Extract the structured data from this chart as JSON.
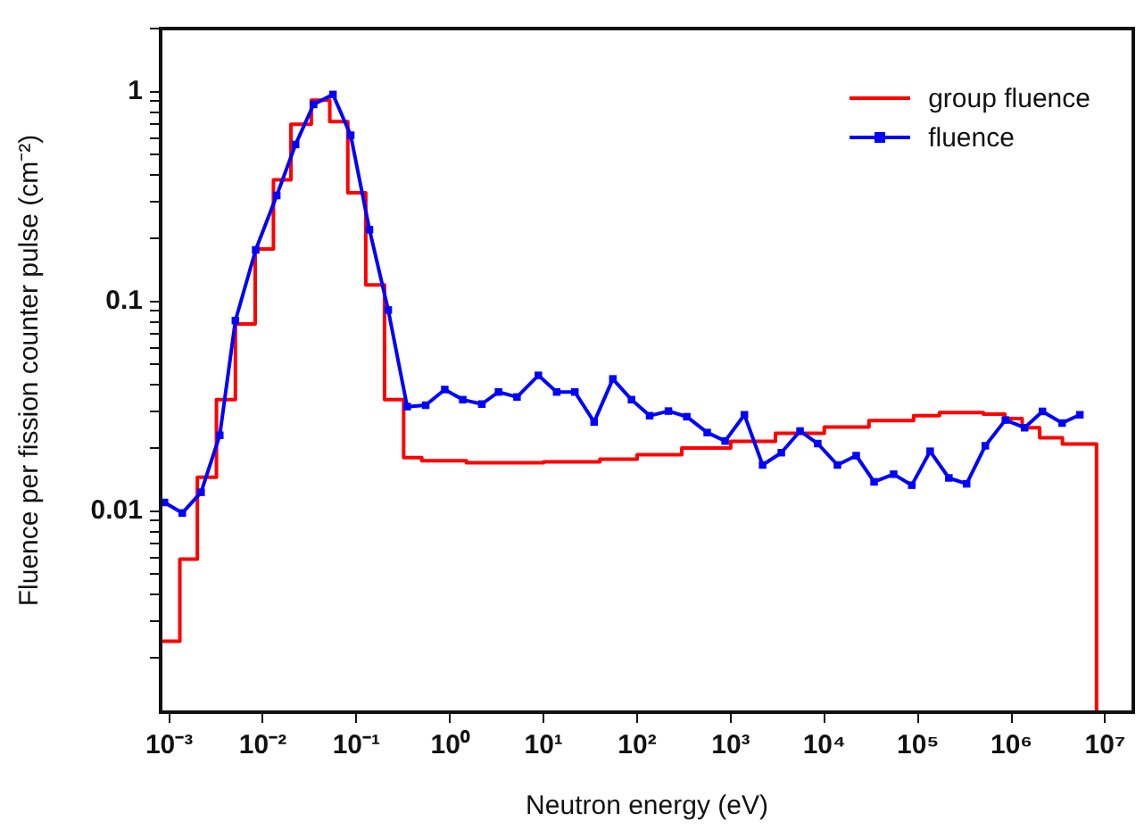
{
  "chart_data": {
    "type": "line",
    "xlabel": "Neutron energy (eV)",
    "ylabel": "Fluence per fission counter pulse (cm⁻²)",
    "log": "xy",
    "grid": false,
    "legend": "top right",
    "line_style": "solid",
    "xlim": [
      0.00081,
      20000000
    ],
    "ylim": [
      0.0011,
      2
    ],
    "xticks": [
      {
        "value": 0.001,
        "label": "10⁻³"
      },
      {
        "value": 0.01,
        "label": "10⁻²"
      },
      {
        "value": 0.1,
        "label": "10⁻¹"
      },
      {
        "value": 1,
        "label": "10⁰"
      },
      {
        "value": 10,
        "label": "10¹"
      },
      {
        "value": 100,
        "label": "10²"
      },
      {
        "value": 1000,
        "label": "10³"
      },
      {
        "value": 10000,
        "label": "10⁴"
      },
      {
        "value": 100000,
        "label": "10⁵"
      },
      {
        "value": 1000000,
        "label": "10⁶"
      },
      {
        "value": 10000000,
        "label": "10⁷"
      }
    ],
    "yticks": [
      {
        "value": 0.002,
        "label": null
      },
      {
        "value": 0.003,
        "label": null
      },
      {
        "value": 0.004,
        "label": null
      },
      {
        "value": 0.005,
        "label": null
      },
      {
        "value": 0.006,
        "label": null
      },
      {
        "value": 0.007,
        "label": null
      },
      {
        "value": 0.008,
        "label": null
      },
      {
        "value": 0.009,
        "label": null
      },
      0.01,
      {
        "value": 0.02,
        "label": null
      },
      {
        "value": 0.03,
        "label": null
      },
      {
        "value": 0.04,
        "label": null
      },
      {
        "value": 0.05,
        "label": null
      },
      {
        "value": 0.06,
        "label": null
      },
      {
        "value": 0.07,
        "label": null
      },
      {
        "value": 0.08,
        "label": null
      },
      {
        "value": 0.09,
        "label": null
      },
      0.1,
      {
        "value": 0.2,
        "label": null
      },
      {
        "value": 0.3,
        "label": null
      },
      {
        "value": 0.4,
        "label": null
      },
      {
        "value": 0.5,
        "label": null
      },
      {
        "value": 0.6,
        "label": null
      },
      {
        "value": 0.7,
        "label": null
      },
      {
        "value": 0.8,
        "label": null
      },
      {
        "value": 0.9,
        "label": null
      },
      1,
      {
        "value": 2,
        "label": null
      }
    ],
    "series": [
      {
        "name": "group fluence",
        "type": "step",
        "color": "#ff0000",
        "marker": "none",
        "x": [
          0.00085,
          0.0013,
          0.002,
          0.0032,
          0.0051,
          0.0083,
          0.013,
          0.02,
          0.033,
          0.052,
          0.081,
          0.126,
          0.2,
          0.32,
          0.5,
          1.5,
          10,
          40,
          100,
          300,
          1000,
          3000,
          10000,
          30000,
          90000,
          170000,
          500000,
          850000,
          1300000,
          2000000,
          3500000,
          8100000
        ],
        "values": [
          0.0024,
          0.0059,
          0.0145,
          0.034,
          0.078,
          0.178,
          0.38,
          0.7,
          0.91,
          0.72,
          0.33,
          0.12,
          0.034,
          0.018,
          0.0174,
          0.017,
          0.0172,
          0.0177,
          0.0186,
          0.02,
          0.0215,
          0.0235,
          0.0252,
          0.027,
          0.0285,
          0.0295,
          0.029,
          0.0276,
          0.025,
          0.0224,
          0.0209,
          0.0011
        ]
      },
      {
        "name": "fluence",
        "color": "#0000ff",
        "marker": "square",
        "x": [
          0.00089,
          0.00138,
          0.00219,
          0.00347,
          0.0051,
          0.0084,
          0.0141,
          0.0224,
          0.0349,
          0.0562,
          0.087,
          0.138,
          0.219,
          0.349,
          0.55,
          0.88,
          1.37,
          2.19,
          3.3,
          5.2,
          8.8,
          13.8,
          21.6,
          34.7,
          55,
          87,
          136,
          216,
          339,
          560,
          871,
          1400,
          2190,
          3470,
          5500,
          8500,
          13800,
          21900,
          34000,
          55000,
          86000,
          135000,
          214000,
          331000,
          525000,
          860000,
          1380000,
          2140000,
          3470000,
          5370000
        ],
        "values": [
          0.011,
          0.0098,
          0.0123,
          0.023,
          0.081,
          0.176,
          0.32,
          0.56,
          0.87,
          0.97,
          0.62,
          0.22,
          0.091,
          0.0315,
          0.032,
          0.038,
          0.034,
          0.0324,
          0.037,
          0.035,
          0.0444,
          0.037,
          0.037,
          0.0266,
          0.0427,
          0.034,
          0.0285,
          0.03,
          0.0282,
          0.0237,
          0.0216,
          0.0288,
          0.0166,
          0.019,
          0.0241,
          0.021,
          0.0166,
          0.0184,
          0.0138,
          0.015,
          0.0133,
          0.0193,
          0.0144,
          0.0135,
          0.0205,
          0.0272,
          0.025,
          0.0299,
          0.0263,
          0.0288
        ]
      }
    ]
  }
}
